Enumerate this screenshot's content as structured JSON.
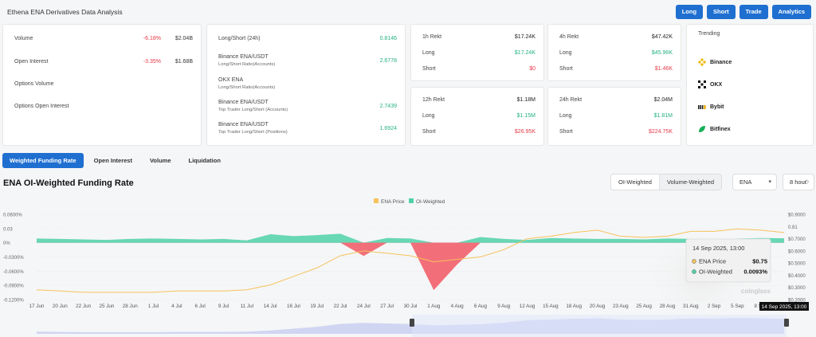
{
  "header": {
    "title": "Ethena ENA Derivatives Data Analysis"
  },
  "top_buttons": {
    "long": "Long",
    "short": "Short",
    "trade": "Trade",
    "analytics": "Analytics"
  },
  "overview": {
    "volume": {
      "label": "Volume",
      "change": "-6.18%",
      "value": "$2.04B"
    },
    "open_interest": {
      "label": "Open Interest",
      "change": "-3.35%",
      "value": "$1.68B"
    },
    "options_volume": {
      "label": "Options Volume"
    },
    "options_open_interest": {
      "label": "Options Open Interest"
    }
  },
  "ratios": {
    "long_short": {
      "label": "Long/Short (24h)",
      "value": "0.8146"
    },
    "binance_accounts": {
      "label": "Binance ENA/USDT",
      "sub": "Long/Short Ratio(Accounts)",
      "value": "2.6778"
    },
    "okx": {
      "label": "OKX ENA",
      "sub": "Long/Short Ratio(Accounts)"
    },
    "binance_top_accounts": {
      "label": "Binance ENA/USDT",
      "sub": "Top Trader Long/Short (Accounts)",
      "value": "2.7439"
    },
    "binance_top_positions": {
      "label": "Binance ENA/USDT",
      "sub": "Top Trader Long/Short (Positions)",
      "value": "1.6924"
    }
  },
  "rekt": {
    "h1": {
      "title": "1h Rekt",
      "total": "$17.24K",
      "long_label": "Long",
      "long": "$17.24K",
      "short_label": "Short",
      "short": "$0"
    },
    "h4": {
      "title": "4h Rekt",
      "total": "$47.42K",
      "long_label": "Long",
      "long": "$45.96K",
      "short_label": "Short",
      "short": "$1.46K"
    },
    "h12": {
      "title": "12h Rekt",
      "total": "$1.18M",
      "long_label": "Long",
      "long": "$1.15M",
      "short_label": "Short",
      "short": "$26.95K"
    },
    "h24": {
      "title": "24h Rekt",
      "total": "$2.04M",
      "long_label": "Long",
      "long": "$1.81M",
      "short_label": "Short",
      "short": "$224.75K"
    }
  },
  "trending": {
    "title": "Trending",
    "items": [
      "Binance",
      "OKX",
      "Bybit",
      "Bitfinex"
    ]
  },
  "tabs": [
    "Weighted Funding Rate",
    "Open Interest",
    "Volume",
    "Liquidation"
  ],
  "chart_header": {
    "title": "ENA OI-Weighted Funding Rate",
    "toggle_on": "OI-Weighted",
    "toggle_off": "Volume-Weighted",
    "coin": "ENA",
    "interval": "8 hour"
  },
  "tooltip": {
    "date": "14 Sep 2025, 13:00",
    "price_label": "ENA Price",
    "price": "$0.75",
    "oi_label": "OI-Weighted",
    "oi": "0.0093%"
  },
  "crosshair_label": "14 Sep 2025, 13:00",
  "watermark": "coinglass",
  "colors": {
    "accent": "#1f6fd1",
    "positive": "#4fd1a8",
    "negative": "#f2606c",
    "price": "#f6c25c"
  },
  "chart_data": {
    "type": "area",
    "legend": [
      "ENA Price",
      "OI-Weighted"
    ],
    "left_ticks": [
      "0.0600%",
      "0.03",
      "0%",
      "-0.0300%",
      "-0.0600%",
      "-0.0900%",
      "-0.1200%"
    ],
    "right_ticks": [
      "$0.9000",
      "0.81",
      "$0.7000",
      "$0.6000",
      "$0.5000",
      "$0.4000",
      "$0.3000",
      "$0.2000"
    ],
    "x_labels": [
      "17 Jun",
      "20 Jun",
      "22 Jun",
      "25 Jun",
      "28 Jun",
      "1 Jul",
      "4 Jul",
      "6 Jul",
      "9 Jul",
      "11 Jul",
      "14 Jul",
      "16 Jul",
      "19 Jul",
      "22 Jul",
      "24 Jul",
      "27 Jul",
      "30 Jul",
      "1 Aug",
      "4 Aug",
      "6 Aug",
      "9 Aug",
      "12 Aug",
      "15 Aug",
      "18 Aug",
      "20 Aug",
      "23 Aug",
      "25 Aug",
      "28 Aug",
      "31 Aug",
      "2 Sep",
      "5 Sep",
      "8 Sep",
      "10 Sep"
    ],
    "ylim_left": [
      -0.12,
      0.06
    ],
    "ylim_right": [
      0.2,
      0.9
    ],
    "ena_price": [
      0.28,
      0.27,
      0.26,
      0.26,
      0.26,
      0.26,
      0.27,
      0.27,
      0.27,
      0.28,
      0.32,
      0.39,
      0.46,
      0.56,
      0.6,
      0.58,
      0.56,
      0.51,
      0.53,
      0.55,
      0.61,
      0.7,
      0.72,
      0.75,
      0.77,
      0.72,
      0.71,
      0.72,
      0.76,
      0.76,
      0.78,
      0.77,
      0.75
    ],
    "funding_rate": [
      0.009,
      0.008,
      0.007,
      0.006,
      0.008,
      0.009,
      0.008,
      0.007,
      0.008,
      0.005,
      0.018,
      0.014,
      0.016,
      0.019,
      -0.028,
      0.01,
      0.009,
      -0.1,
      -0.046,
      0.012,
      0.008,
      0.006,
      0.01,
      0.009,
      0.008,
      0.008,
      0.007,
      0.009,
      0.008,
      0.005,
      0.009,
      0.01,
      0.0093
    ]
  }
}
